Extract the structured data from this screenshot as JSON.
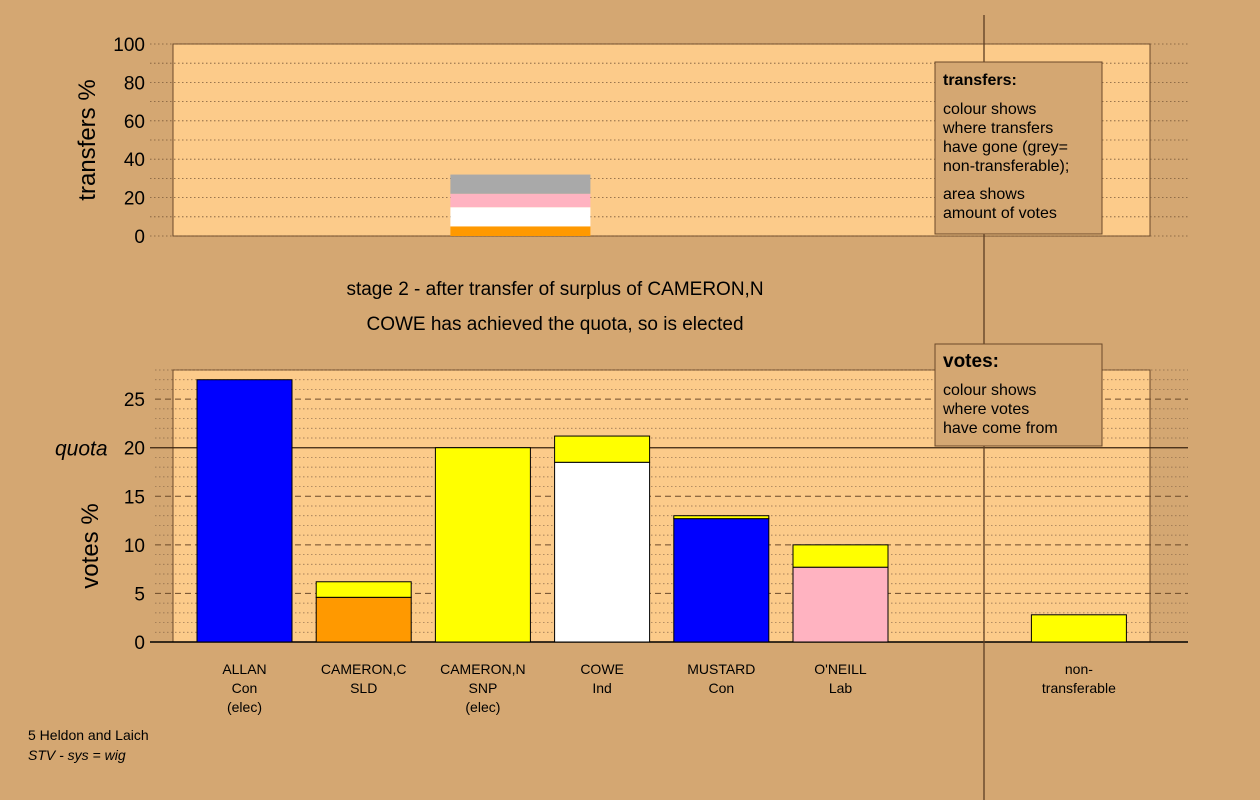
{
  "chart_data": [
    {
      "type": "bar",
      "name": "transfers",
      "ylabel": "transfers %",
      "ylim": [
        0,
        100
      ],
      "yticks": [
        0,
        20,
        40,
        60,
        80,
        100
      ],
      "stacks": [
        {
          "category_index": 2,
          "segments": [
            {
              "value": 5,
              "color": "#FF9900"
            },
            {
              "value": 10,
              "color": "#FFFFFF"
            },
            {
              "value": 7,
              "color": "#FFB3C1"
            },
            {
              "value": 10,
              "color": "#A9A9A9"
            }
          ]
        }
      ]
    },
    {
      "type": "bar",
      "name": "votes",
      "ylabel": "votes %",
      "ylim": [
        0,
        28
      ],
      "yticks": [
        0,
        5,
        10,
        15,
        20,
        25
      ],
      "quota": 20,
      "quota_label": "quota",
      "categories": [
        {
          "name": "ALLAN",
          "party": "Con",
          "note": "(elec)"
        },
        {
          "name": "CAMERON,C",
          "party": "SLD",
          "note": ""
        },
        {
          "name": "CAMERON,N",
          "party": "SNP",
          "note": "(elec)"
        },
        {
          "name": "COWE",
          "party": "Ind",
          "note": ""
        },
        {
          "name": "MUSTARD",
          "party": "Con",
          "note": ""
        },
        {
          "name": "O'NEILL",
          "party": "Lab",
          "note": ""
        },
        {
          "name": "",
          "party": "",
          "note": ""
        },
        {
          "name": "non-",
          "party": "transferable",
          "note": ""
        }
      ],
      "stacks": [
        {
          "category_index": 0,
          "segments": [
            {
              "value": 27,
              "color": "#0000FF"
            }
          ]
        },
        {
          "category_index": 1,
          "segments": [
            {
              "value": 4.6,
              "color": "#FF9900"
            },
            {
              "value": 1.6,
              "color": "#FFFF00"
            }
          ]
        },
        {
          "category_index": 2,
          "segments": [
            {
              "value": 20,
              "color": "#FFFF00"
            }
          ]
        },
        {
          "category_index": 3,
          "segments": [
            {
              "value": 18.5,
              "color": "#FFFFFF"
            },
            {
              "value": 2.7,
              "color": "#FFFF00"
            }
          ]
        },
        {
          "category_index": 4,
          "segments": [
            {
              "value": 12.7,
              "color": "#0000FF"
            },
            {
              "value": 0.3,
              "color": "#FFFF00"
            }
          ]
        },
        {
          "category_index": 5,
          "segments": [
            {
              "value": 7.7,
              "color": "#FFB3C1"
            },
            {
              "value": 2.3,
              "color": "#FFFF00"
            }
          ]
        },
        {
          "category_index": 7,
          "segments": [
            {
              "value": 2.8,
              "color": "#FFFF00"
            }
          ]
        }
      ]
    }
  ],
  "stage_line1": "stage 2 - after transfer of surplus of CAMERON,N",
  "stage_line2": "COWE has achieved the quota, so is elected",
  "legend_transfers": {
    "title": "transfers:",
    "lines": [
      "colour shows",
      "where transfers",
      "have gone (grey=",
      "non-transferable);",
      "area shows",
      "amount of votes"
    ]
  },
  "legend_votes": {
    "title": "votes:",
    "lines": [
      "colour shows",
      "where votes",
      "have come from"
    ]
  },
  "footer_line1": "5 Heldon and Laich",
  "footer_line2": "STV - sys = wig",
  "colors": {
    "background": "#D4A772",
    "plot_bg": "#FCCB8A",
    "ruler": "#5C3E22"
  }
}
